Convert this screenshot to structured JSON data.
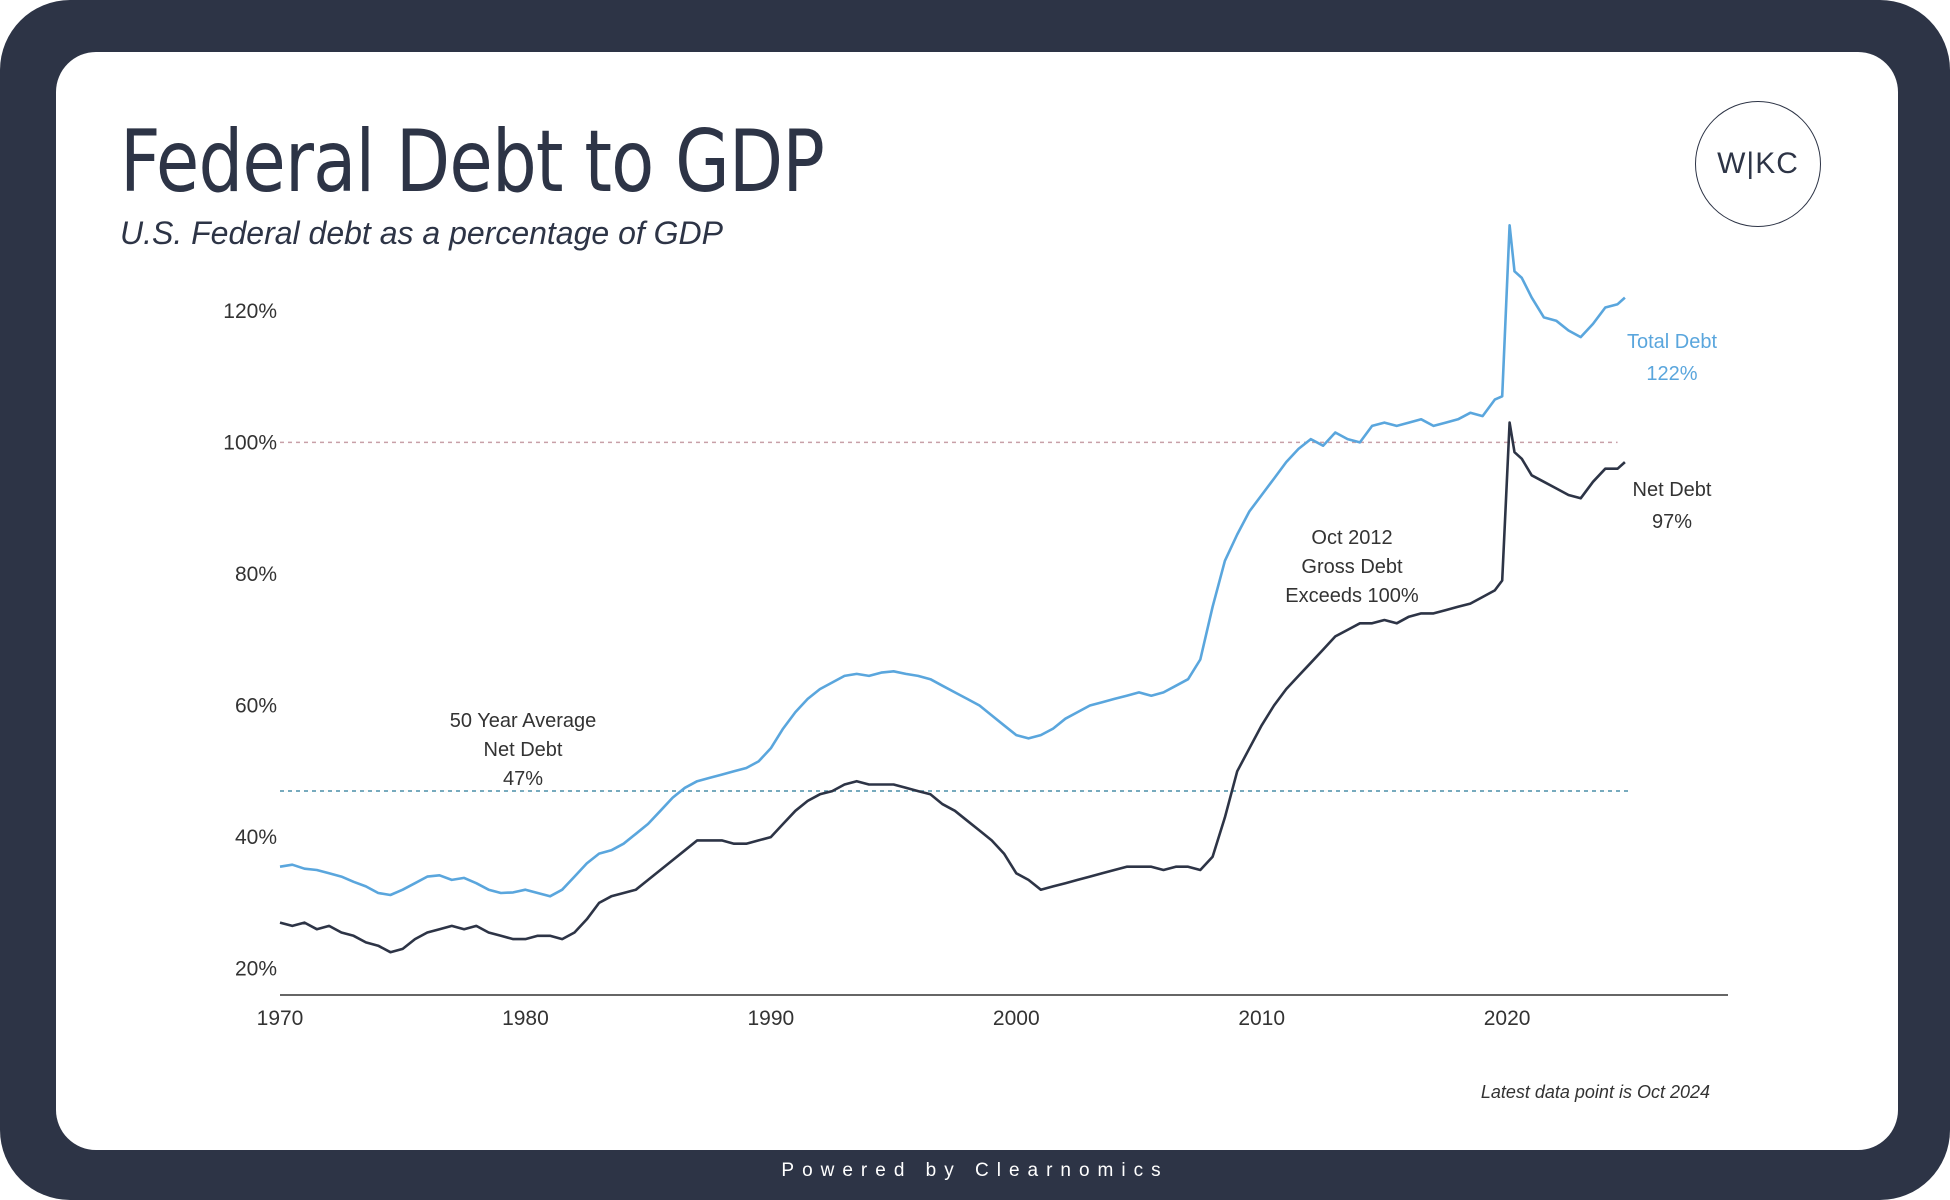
{
  "header": {
    "title": "Federal Debt to GDP",
    "subtitle": "U.S. Federal debt as a percentage of GDP",
    "logo_text": "W|KC"
  },
  "footer": {
    "text": "Powered by Clearnomics"
  },
  "colors": {
    "frame": "#2d3446",
    "total_debt": "#5aa6dd",
    "net_debt": "#2d3446",
    "ref_100": "#c8a0a8",
    "ref_avg": "#4a8fa8"
  },
  "chart_data": {
    "type": "line",
    "title": "Federal Debt to GDP",
    "xlabel": "",
    "ylabel": "",
    "xlim": [
      1970,
      2029
    ],
    "ylim": [
      16,
      130
    ],
    "x_ticks": [
      1970,
      1980,
      1990,
      2000,
      2010,
      2020
    ],
    "y_ticks": [
      20,
      40,
      60,
      80,
      100,
      120
    ],
    "y_tick_labels": [
      "20%",
      "40%",
      "60%",
      "80%",
      "100%",
      "120%"
    ],
    "grid": false,
    "series": [
      {
        "name": "Total Debt",
        "color": "#5aa6dd",
        "end_label": [
          "Total Debt",
          "122%"
        ],
        "x": [
          1970,
          1970.5,
          1971,
          1971.5,
          1972,
          1972.5,
          1973,
          1973.5,
          1974,
          1974.5,
          1975,
          1975.5,
          1976,
          1976.5,
          1977,
          1977.5,
          1978,
          1978.5,
          1979,
          1979.5,
          1980,
          1980.5,
          1981,
          1981.5,
          1982,
          1982.5,
          1983,
          1983.5,
          1984,
          1984.5,
          1985,
          1985.5,
          1986,
          1986.5,
          1987,
          1987.5,
          1988,
          1988.5,
          1989,
          1989.5,
          1990,
          1990.5,
          1991,
          1991.5,
          1992,
          1992.5,
          1993,
          1993.5,
          1994,
          1994.5,
          1995,
          1995.5,
          1996,
          1996.5,
          1997,
          1997.5,
          1998,
          1998.5,
          1999,
          1999.5,
          2000,
          2000.5,
          2001,
          2001.5,
          2002,
          2002.5,
          2003,
          2003.5,
          2004,
          2004.5,
          2005,
          2005.5,
          2006,
          2006.5,
          2007,
          2007.5,
          2008,
          2008.5,
          2009,
          2009.5,
          2010,
          2010.5,
          2011,
          2011.5,
          2012,
          2012.5,
          2013,
          2013.5,
          2014,
          2014.5,
          2015,
          2015.5,
          2016,
          2016.5,
          2017,
          2017.5,
          2018,
          2018.5,
          2019,
          2019.5,
          2019.8,
          2020.1,
          2020.3,
          2020.6,
          2021,
          2021.5,
          2022,
          2022.5,
          2023,
          2023.5,
          2024,
          2024.5,
          2024.8
        ],
        "values": [
          35.5,
          35.8,
          35.2,
          35.0,
          34.5,
          34.0,
          33.2,
          32.5,
          31.5,
          31.2,
          32.0,
          33.0,
          34.0,
          34.2,
          33.5,
          33.8,
          33.0,
          32.0,
          31.5,
          31.6,
          32.0,
          31.5,
          31.0,
          32.0,
          34.0,
          36.0,
          37.5,
          38.0,
          39.0,
          40.5,
          42.0,
          44.0,
          46.0,
          47.5,
          48.5,
          49.0,
          49.5,
          50.0,
          50.5,
          51.5,
          53.5,
          56.5,
          59.0,
          61.0,
          62.5,
          63.5,
          64.5,
          64.8,
          64.5,
          65.0,
          65.2,
          64.8,
          64.5,
          64.0,
          63.0,
          62.0,
          61.0,
          60.0,
          58.5,
          57.0,
          55.5,
          55.0,
          55.5,
          56.5,
          58.0,
          59.0,
          60.0,
          60.5,
          61.0,
          61.5,
          62.0,
          61.5,
          62.0,
          63.0,
          64.0,
          67.0,
          75.0,
          82.0,
          86.0,
          89.5,
          92.0,
          94.5,
          97.0,
          99.0,
          100.5,
          99.5,
          101.5,
          100.5,
          100.0,
          102.5,
          103.0,
          102.5,
          103.0,
          103.5,
          102.5,
          103.0,
          103.5,
          104.5,
          104.0,
          106.5,
          107.0,
          133.0,
          126.0,
          125.0,
          122.0,
          119.0,
          118.5,
          117.0,
          116.0,
          118.0,
          120.5,
          121.0,
          122.0
        ]
      },
      {
        "name": "Net Debt",
        "color": "#2d3446",
        "end_label": [
          "Net Debt",
          "97%"
        ],
        "x": [
          1970,
          1970.5,
          1971,
          1971.5,
          1972,
          1972.5,
          1973,
          1973.5,
          1974,
          1974.5,
          1975,
          1975.5,
          1976,
          1976.5,
          1977,
          1977.5,
          1978,
          1978.5,
          1979,
          1979.5,
          1980,
          1980.5,
          1981,
          1981.5,
          1982,
          1982.5,
          1983,
          1983.5,
          1984,
          1984.5,
          1985,
          1985.5,
          1986,
          1986.5,
          1987,
          1987.5,
          1988,
          1988.5,
          1989,
          1989.5,
          1990,
          1990.5,
          1991,
          1991.5,
          1992,
          1992.5,
          1993,
          1993.5,
          1994,
          1994.5,
          1995,
          1995.5,
          1996,
          1996.5,
          1997,
          1997.5,
          1998,
          1998.5,
          1999,
          1999.5,
          2000,
          2000.5,
          2001,
          2001.5,
          2002,
          2002.5,
          2003,
          2003.5,
          2004,
          2004.5,
          2005,
          2005.5,
          2006,
          2006.5,
          2007,
          2007.5,
          2008,
          2008.5,
          2009,
          2009.5,
          2010,
          2010.5,
          2011,
          2011.5,
          2012,
          2012.5,
          2013,
          2013.5,
          2014,
          2014.5,
          2015,
          2015.5,
          2016,
          2016.5,
          2017,
          2017.5,
          2018,
          2018.5,
          2019,
          2019.5,
          2019.8,
          2020.1,
          2020.3,
          2020.6,
          2021,
          2021.5,
          2022,
          2022.5,
          2023,
          2023.5,
          2024,
          2024.5,
          2024.8
        ],
        "values": [
          27.0,
          26.5,
          27.0,
          26.0,
          26.5,
          25.5,
          25.0,
          24.0,
          23.5,
          22.5,
          23.0,
          24.5,
          25.5,
          26.0,
          26.5,
          26.0,
          26.5,
          25.5,
          25.0,
          24.5,
          24.5,
          25.0,
          25.0,
          24.5,
          25.5,
          27.5,
          30.0,
          31.0,
          31.5,
          32.0,
          33.5,
          35.0,
          36.5,
          38.0,
          39.5,
          39.5,
          39.5,
          39.0,
          39.0,
          39.5,
          40.0,
          42.0,
          44.0,
          45.5,
          46.5,
          47.0,
          48.0,
          48.5,
          48.0,
          48.0,
          48.0,
          47.5,
          47.0,
          46.5,
          45.0,
          44.0,
          42.5,
          41.0,
          39.5,
          37.5,
          34.5,
          33.5,
          32.0,
          32.5,
          33.0,
          33.5,
          34.0,
          34.5,
          35.0,
          35.5,
          35.5,
          35.5,
          35.0,
          35.5,
          35.5,
          35.0,
          37.0,
          43.0,
          50.0,
          53.5,
          57.0,
          60.0,
          62.5,
          64.5,
          66.5,
          68.5,
          70.5,
          71.5,
          72.5,
          72.5,
          73.0,
          72.5,
          73.5,
          74.0,
          74.0,
          74.5,
          75.0,
          75.5,
          76.5,
          77.5,
          79.0,
          103.0,
          98.5,
          97.5,
          95.0,
          94.0,
          93.0,
          92.0,
          91.5,
          94.0,
          96.0,
          96.0,
          97.0
        ]
      }
    ],
    "reference_lines": [
      {
        "name": "100% line",
        "y": 100,
        "color": "#c8a0a8"
      },
      {
        "name": "50 Year Average Net Debt",
        "y": 47,
        "color": "#4a8fa8"
      }
    ],
    "annotations": [
      {
        "name": "avg-annotation",
        "lines": [
          "50 Year Average",
          "Net Debt",
          "47%"
        ]
      },
      {
        "name": "oct2012-annotation",
        "lines": [
          "Oct 2012",
          "Gross Debt",
          "Exceeds 100%"
        ]
      }
    ],
    "note": "Latest data point is Oct 2024"
  }
}
